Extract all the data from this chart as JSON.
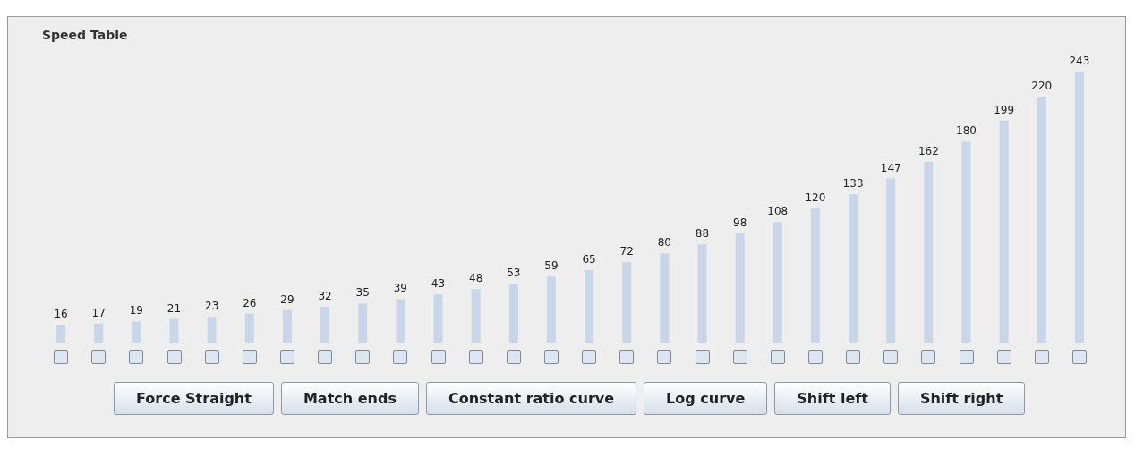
{
  "chart_data": {
    "type": "bar",
    "title": "Speed Table",
    "categories": [
      null,
      null,
      null,
      null,
      null,
      null,
      null,
      null,
      null,
      null,
      null,
      null,
      null,
      null,
      null,
      null,
      null,
      null,
      null,
      null,
      null,
      null,
      null,
      null,
      null,
      null,
      null,
      null
    ],
    "values": [
      16,
      17,
      19,
      21,
      23,
      26,
      29,
      32,
      35,
      39,
      43,
      48,
      53,
      59,
      65,
      72,
      80,
      88,
      98,
      108,
      120,
      133,
      147,
      162,
      180,
      199,
      220,
      243
    ],
    "color": "#c9d6ea",
    "data_labels": true,
    "grid": false,
    "tick_labels": false,
    "annotations": [
      "Force Straight",
      "Match ends",
      "Constant ratio curve",
      "Log curve",
      "Shift left",
      "Shift right"
    ]
  }
}
